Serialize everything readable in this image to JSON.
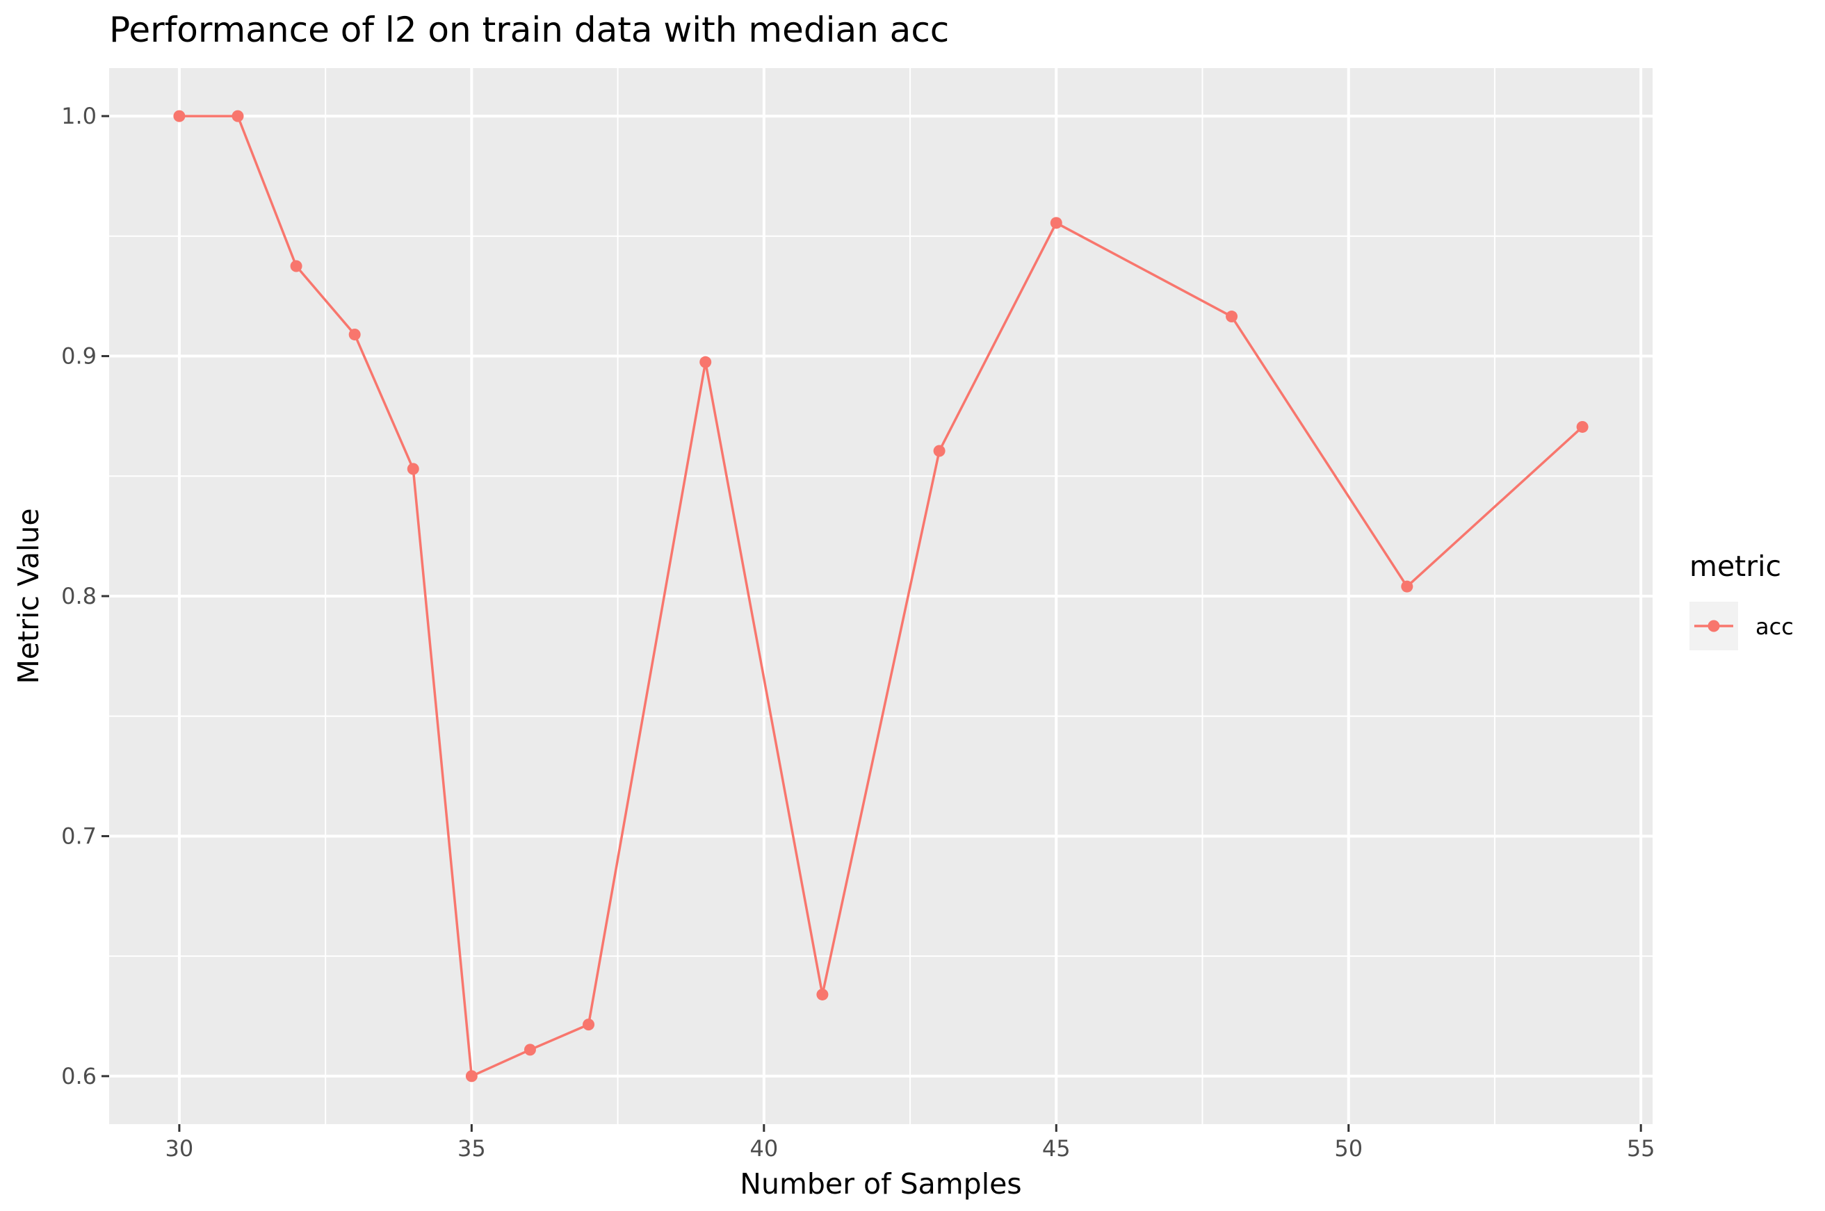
{
  "chart_data": {
    "type": "line",
    "title": "Performance of l2 on train data with median acc",
    "xlabel": "Number of Samples",
    "ylabel": "Metric Value",
    "xlim": [
      28.8,
      55.2
    ],
    "ylim": [
      0.58,
      1.02
    ],
    "x_major_ticks": [
      30,
      35,
      40,
      45,
      50,
      55
    ],
    "x_minor_ticks": [
      32.5,
      37.5,
      42.5,
      47.5,
      52.5
    ],
    "y_major_ticks": [
      0.6,
      0.7,
      0.8,
      0.9,
      1.0
    ],
    "y_minor_ticks": [
      0.65,
      0.75,
      0.85,
      0.95
    ],
    "x_tick_labels": [
      "30",
      "35",
      "40",
      "45",
      "50",
      "55"
    ],
    "y_tick_labels": [
      "0.6",
      "0.7",
      "0.8",
      "0.9",
      "1.0"
    ],
    "grid": true,
    "legend_position": "right",
    "legend_title": "metric",
    "series": [
      {
        "name": "acc",
        "color": "#F8766D",
        "x": [
          30,
          31,
          32,
          33,
          34,
          35,
          36,
          37,
          39,
          41,
          43,
          45,
          48,
          51,
          54
        ],
        "y": [
          1.0,
          1.0,
          0.9375,
          0.909,
          0.853,
          0.6,
          0.611,
          0.6215,
          0.8975,
          0.634,
          0.8605,
          0.9555,
          0.9165,
          0.804,
          0.8705
        ]
      }
    ]
  }
}
